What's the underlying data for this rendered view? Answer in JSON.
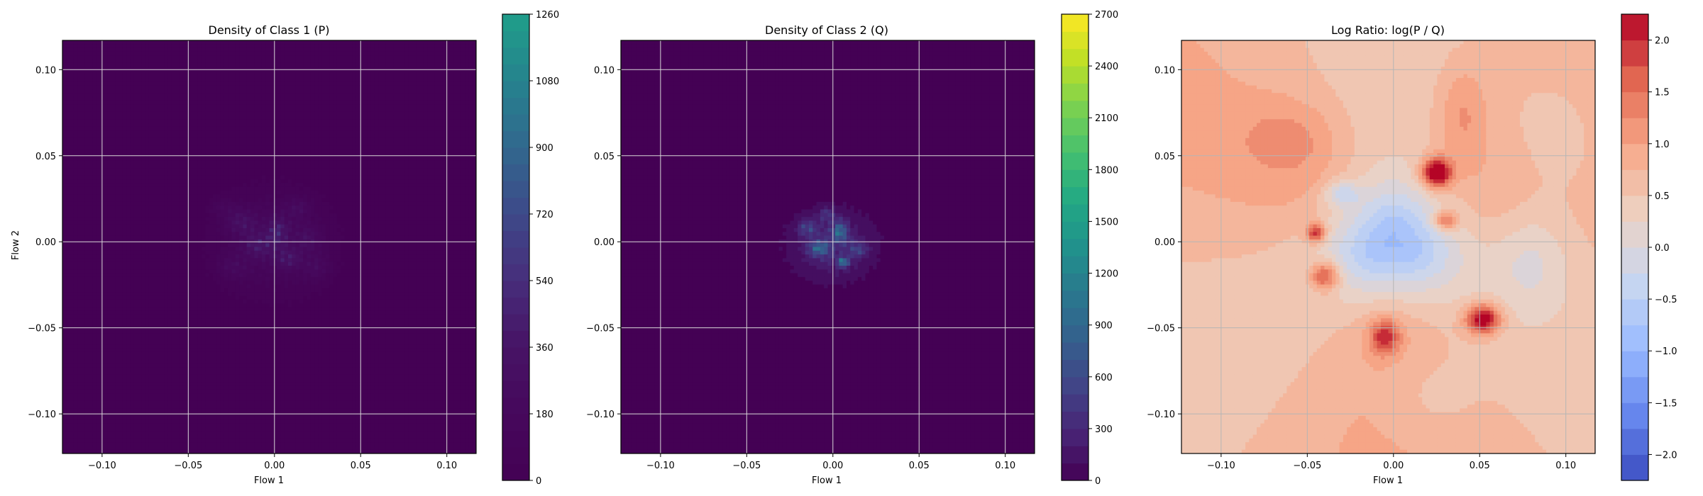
{
  "chart_data": [
    {
      "type": "heatmap",
      "title": "Density of Class 1 (P)",
      "xlabel": "Flow 1",
      "ylabel": "Flow 2",
      "xlim": [
        -0.123,
        0.117
      ],
      "ylim": [
        -0.123,
        0.117
      ],
      "xticks": [
        -0.1,
        -0.05,
        0.0,
        0.05,
        0.1
      ],
      "xtick_labels": [
        "−0.10",
        "−0.05",
        "0.00",
        "0.05",
        "0.10"
      ],
      "yticks": [
        0.1,
        0.05,
        0.0,
        -0.05,
        -0.1
      ],
      "ytick_labels": [
        "0.10",
        "0.05",
        "0.00",
        "−0.05",
        "−0.10"
      ],
      "grid": true,
      "colormap": "viridis",
      "colorbar_range": [
        0,
        1260
      ],
      "colorbar_ticks": [
        0,
        180,
        360,
        540,
        720,
        900,
        1080,
        1260
      ],
      "colorbar_tick_labels": [
        "0",
        "180",
        "360",
        "540",
        "720",
        "900",
        "1080",
        "1260"
      ],
      "cmap_stops": [
        "#440154",
        "#46085c",
        "#471365",
        "#472d7b",
        "#3e4989",
        "#31688e",
        "#26828e",
        "#1f9e89"
      ],
      "density_blobs": [
        {
          "x": 0.0,
          "y": 0.0,
          "sx": 0.022,
          "sy": 0.02,
          "v": 260
        },
        {
          "x": -0.02,
          "y": 0.012,
          "sx": 0.006,
          "sy": 0.005,
          "v": 330
        },
        {
          "x": 0.002,
          "y": 0.006,
          "sx": 0.004,
          "sy": 0.006,
          "v": 360
        },
        {
          "x": 0.008,
          "y": -0.01,
          "sx": 0.005,
          "sy": 0.004,
          "v": 320
        },
        {
          "x": -0.01,
          "y": -0.002,
          "sx": 0.006,
          "sy": 0.005,
          "v": 300
        },
        {
          "x": 0.014,
          "y": 0.02,
          "sx": 0.005,
          "sy": 0.004,
          "v": 260
        },
        {
          "x": -0.025,
          "y": -0.015,
          "sx": 0.006,
          "sy": 0.005,
          "v": 240
        },
        {
          "x": 0.025,
          "y": -0.015,
          "sx": 0.006,
          "sy": 0.006,
          "v": 240
        },
        {
          "x": -0.03,
          "y": 0.02,
          "sx": 0.005,
          "sy": 0.004,
          "v": 220
        },
        {
          "x": 0.02,
          "y": 0.002,
          "sx": 0.005,
          "sy": 0.005,
          "v": 230
        }
      ],
      "support": {
        "cx": -0.002,
        "cy": 0.0,
        "rx": 0.044,
        "ry": 0.04
      }
    },
    {
      "type": "heatmap",
      "title": "Density of Class 2 (Q)",
      "xlabel": "Flow 1",
      "ylabel": "",
      "xlim": [
        -0.123,
        0.117
      ],
      "ylim": [
        -0.123,
        0.117
      ],
      "xticks": [
        -0.1,
        -0.05,
        0.0,
        0.05,
        0.1
      ],
      "xtick_labels": [
        "−0.10",
        "−0.05",
        "0.00",
        "0.05",
        "0.10"
      ],
      "yticks": [
        0.1,
        0.05,
        0.0,
        -0.05,
        -0.1
      ],
      "ytick_labels": [
        "0.10",
        "0.05",
        "0.00",
        "−0.05",
        "−0.10"
      ],
      "grid": true,
      "colormap": "viridis",
      "colorbar_range": [
        0,
        2700
      ],
      "colorbar_ticks": [
        0,
        300,
        600,
        900,
        1200,
        1500,
        1800,
        2100,
        2400,
        2700
      ],
      "colorbar_tick_labels": [
        "0",
        "300",
        "600",
        "900",
        "1200",
        "1500",
        "1800",
        "2100",
        "2400",
        "2700"
      ],
      "cmap_stops": [
        "#440154",
        "#482475",
        "#414487",
        "#355f8d",
        "#2a788e",
        "#21918c",
        "#22a884",
        "#44bf70",
        "#7ad151",
        "#bddf26",
        "#fde725"
      ],
      "density_blobs": [
        {
          "x": 0.0,
          "y": -0.002,
          "sx": 0.017,
          "sy": 0.014,
          "v": 420
        },
        {
          "x": -0.008,
          "y": -0.004,
          "sx": 0.004,
          "sy": 0.003,
          "v": 900
        },
        {
          "x": 0.004,
          "y": 0.006,
          "sx": 0.003,
          "sy": 0.004,
          "v": 1000
        },
        {
          "x": 0.006,
          "y": -0.012,
          "sx": 0.002,
          "sy": 0.002,
          "v": 1300
        },
        {
          "x": -0.015,
          "y": 0.008,
          "sx": 0.004,
          "sy": 0.003,
          "v": 600
        },
        {
          "x": 0.015,
          "y": -0.005,
          "sx": 0.004,
          "sy": 0.003,
          "v": 500
        },
        {
          "x": -0.004,
          "y": 0.016,
          "sx": 0.004,
          "sy": 0.003,
          "v": 450
        }
      ],
      "support": {
        "cx": -0.002,
        "cy": -0.002,
        "rx": 0.034,
        "ry": 0.03
      }
    },
    {
      "type": "heatmap",
      "title": "Log Ratio: log(P / Q)",
      "xlabel": "Flow 1",
      "ylabel": "",
      "xlim": [
        -0.123,
        0.117
      ],
      "ylim": [
        -0.123,
        0.117
      ],
      "xticks": [
        -0.1,
        -0.05,
        0.0,
        0.05,
        0.1
      ],
      "xtick_labels": [
        "−0.10",
        "−0.05",
        "0.00",
        "0.05",
        "0.10"
      ],
      "yticks": [
        0.1,
        0.05,
        0.0,
        -0.05,
        -0.1
      ],
      "ytick_labels": [
        "0.10",
        "0.05",
        "0.00",
        "−0.05",
        "−0.10"
      ],
      "grid": true,
      "colormap": "coolwarm",
      "colorbar_range": [
        -2.25,
        2.25
      ],
      "colorbar_ticks": [
        -2.0,
        -1.5,
        -1.0,
        -0.5,
        0.0,
        0.5,
        1.0,
        1.5,
        2.0
      ],
      "colorbar_tick_labels": [
        "−2.0",
        "−1.5",
        "−1.0",
        "−0.5",
        "0.0",
        "0.5",
        "1.0",
        "1.5",
        "2.0"
      ],
      "cmap_stops": [
        "#3b4cc0",
        "#6788ee",
        "#9abbff",
        "#c9d7f0",
        "#edd1c2",
        "#f7a889",
        "#e26952",
        "#b40426"
      ],
      "base_level": 0.7,
      "ratio_blobs": [
        {
          "x": 0.0,
          "y": 0.0,
          "sx": 0.026,
          "sy": 0.022,
          "v": -1.6
        },
        {
          "x": -0.03,
          "y": 0.028,
          "sx": 0.007,
          "sy": 0.005,
          "v": -0.8
        },
        {
          "x": 0.025,
          "y": 0.04,
          "sx": 0.006,
          "sy": 0.006,
          "v": 2.2
        },
        {
          "x": 0.052,
          "y": -0.045,
          "sx": 0.007,
          "sy": 0.006,
          "v": 2.0
        },
        {
          "x": -0.04,
          "y": -0.02,
          "sx": 0.006,
          "sy": 0.006,
          "v": 1.4
        },
        {
          "x": -0.005,
          "y": -0.055,
          "sx": 0.006,
          "sy": 0.007,
          "v": 1.3
        },
        {
          "x": -0.045,
          "y": 0.005,
          "sx": 0.004,
          "sy": 0.004,
          "v": 1.5
        },
        {
          "x": 0.03,
          "y": 0.012,
          "sx": 0.005,
          "sy": 0.004,
          "v": 1.2
        },
        {
          "x": 0.04,
          "y": 0.075,
          "sx": 0.01,
          "sy": 0.02,
          "v": 0.5
        },
        {
          "x": -0.06,
          "y": 0.06,
          "sx": 0.02,
          "sy": 0.015,
          "v": 0.4
        },
        {
          "x": 0.08,
          "y": -0.01,
          "sx": 0.015,
          "sy": 0.02,
          "v": -0.5
        },
        {
          "x": 0.095,
          "y": 0.06,
          "sx": 0.025,
          "sy": 0.03,
          "v": -0.4
        },
        {
          "x": 0.02,
          "y": -0.09,
          "sx": 0.02,
          "sy": 0.02,
          "v": -0.3
        }
      ]
    }
  ]
}
